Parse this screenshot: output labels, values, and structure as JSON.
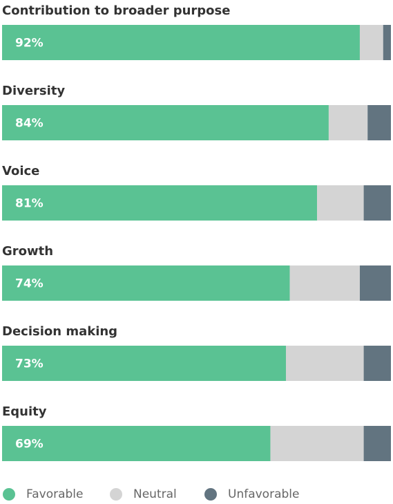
{
  "chart_data": {
    "type": "stacked-bar",
    "orientation": "horizontal",
    "categories": [
      "Contribution to broader purpose",
      "Diversity",
      "Voice",
      "Growth",
      "Decision making",
      "Equity"
    ],
    "xlim": [
      0,
      100
    ],
    "series": [
      {
        "name": "Favorable",
        "color": "#5ac293",
        "values": [
          92,
          84,
          81,
          74,
          73,
          69
        ],
        "value_labels": [
          "92%",
          "84%",
          "81%",
          "74%",
          "73%",
          "69%"
        ]
      },
      {
        "name": "Neutral",
        "color": "#d4d4d4",
        "values": [
          6,
          10,
          12,
          18,
          20,
          24
        ]
      },
      {
        "name": "Unfavorable",
        "color": "#627480",
        "values": [
          2,
          6,
          7,
          8,
          7,
          7
        ]
      }
    ],
    "legend": "bottom-left"
  }
}
